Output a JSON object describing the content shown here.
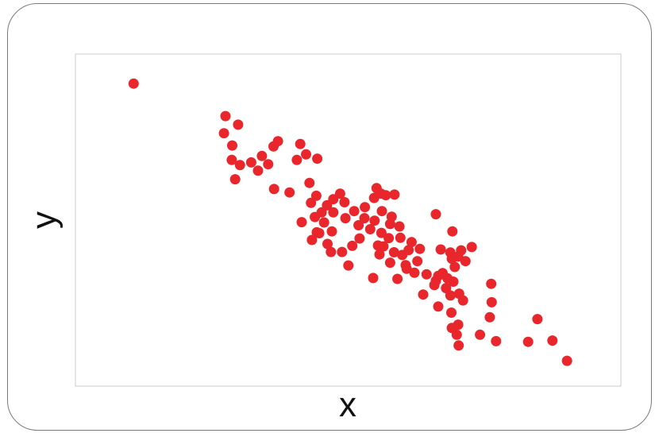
{
  "chart_data": {
    "type": "scatter",
    "title": "",
    "xlabel": "x",
    "ylabel": "y",
    "grid": false,
    "legend": "none",
    "xlim": [
      0,
      100
    ],
    "ylim": [
      0,
      100
    ],
    "marker_color": "#e8262b",
    "frame_color": "#d4d4d4",
    "card_border_color": "#7a7a7a",
    "points": [
      [
        7.4,
        94.0
      ],
      [
        26.3,
        83.4
      ],
      [
        28.9,
        80.6
      ],
      [
        26.0,
        77.8
      ],
      [
        27.7,
        73.8
      ],
      [
        27.6,
        69.1
      ],
      [
        29.3,
        67.4
      ],
      [
        28.3,
        62.8
      ],
      [
        33.0,
        65.6
      ],
      [
        31.6,
        68.3
      ],
      [
        35.1,
        67.7
      ],
      [
        33.8,
        70.4
      ],
      [
        36.2,
        73.5
      ],
      [
        37.1,
        75.2
      ],
      [
        41.7,
        74.3
      ],
      [
        36.3,
        59.6
      ],
      [
        39.5,
        58.5
      ],
      [
        42.9,
        70.9
      ],
      [
        41.0,
        69.1
      ],
      [
        45.2,
        69.5
      ],
      [
        43.6,
        61.6
      ],
      [
        45.0,
        57.4
      ],
      [
        43.9,
        55.1
      ],
      [
        44.7,
        50.5
      ],
      [
        46.1,
        52.0
      ],
      [
        47.2,
        54.3
      ],
      [
        48.5,
        56.3
      ],
      [
        49.9,
        58.1
      ],
      [
        50.8,
        55.3
      ],
      [
        48.5,
        52.0
      ],
      [
        46.6,
        48.7
      ],
      [
        48.2,
        45.8
      ],
      [
        45.1,
        45.5
      ],
      [
        42.0,
        48.8
      ],
      [
        44.1,
        43.0
      ],
      [
        47.3,
        41.7
      ],
      [
        50.3,
        39.1
      ],
      [
        48.0,
        39.1
      ],
      [
        45.6,
        45.2
      ],
      [
        51.0,
        50.1
      ],
      [
        52.8,
        52.4
      ],
      [
        54.9,
        50.1
      ],
      [
        55.0,
        53.7
      ],
      [
        56.9,
        56.7
      ],
      [
        57.4,
        59.9
      ],
      [
        58.3,
        58.1
      ],
      [
        59.3,
        57.6
      ],
      [
        61.1,
        57.8
      ],
      [
        58.5,
        52.4
      ],
      [
        57.0,
        49.3
      ],
      [
        56.1,
        46.5
      ],
      [
        58.4,
        45.3
      ],
      [
        57.7,
        41.2
      ],
      [
        59.9,
        43.6
      ],
      [
        60.2,
        48.2
      ],
      [
        60.5,
        50.6
      ],
      [
        62.1,
        47.4
      ],
      [
        62.3,
        43.7
      ],
      [
        62.7,
        38.1
      ],
      [
        61.0,
        39.0
      ],
      [
        64.0,
        39.7
      ],
      [
        64.6,
        42.3
      ],
      [
        66.3,
        40.1
      ],
      [
        65.8,
        36.1
      ],
      [
        63.4,
        34.8
      ],
      [
        63.6,
        33.6
      ],
      [
        60.2,
        35.6
      ],
      [
        58.8,
        40.9
      ],
      [
        53.9,
        43.5
      ],
      [
        52.4,
        41.1
      ],
      [
        53.7,
        47.8
      ],
      [
        51.6,
        34.7
      ],
      [
        56.7,
        30.6
      ],
      [
        58.0,
        38.3
      ],
      [
        61.7,
        30.3
      ],
      [
        65.2,
        32.3
      ],
      [
        67.0,
        25.2
      ],
      [
        67.7,
        31.8
      ],
      [
        69.3,
        28.3
      ],
      [
        69.6,
        29.7
      ],
      [
        70.1,
        31.3
      ],
      [
        71.0,
        32.2
      ],
      [
        72.0,
        30.5
      ],
      [
        73.2,
        29.4
      ],
      [
        74.4,
        25.5
      ],
      [
        75.2,
        23.3
      ],
      [
        73.5,
        34.2
      ],
      [
        72.9,
        36.9
      ],
      [
        72.6,
        38.9
      ],
      [
        74.2,
        37.6
      ],
      [
        74.8,
        39.6
      ],
      [
        71.7,
        27.3
      ],
      [
        72.6,
        24.9
      ],
      [
        72.8,
        19.3
      ],
      [
        72.9,
        14.3
      ],
      [
        74.2,
        15.4
      ],
      [
        73.9,
        12.1
      ],
      [
        74.3,
        8.6
      ],
      [
        75.7,
        36.1
      ],
      [
        77.0,
        40.7
      ],
      [
        70.1,
        21.3
      ],
      [
        73.0,
        45.8
      ],
      [
        70.6,
        39.9
      ],
      [
        69.6,
        51.4
      ],
      [
        81.0,
        28.7
      ],
      [
        81.1,
        22.7
      ],
      [
        80.7,
        17.8
      ],
      [
        78.7,
        12.1
      ],
      [
        82.0,
        10.0
      ],
      [
        88.6,
        9.8
      ],
      [
        90.5,
        17.2
      ],
      [
        93.6,
        10.2
      ],
      [
        96.6,
        3.6
      ]
    ]
  }
}
